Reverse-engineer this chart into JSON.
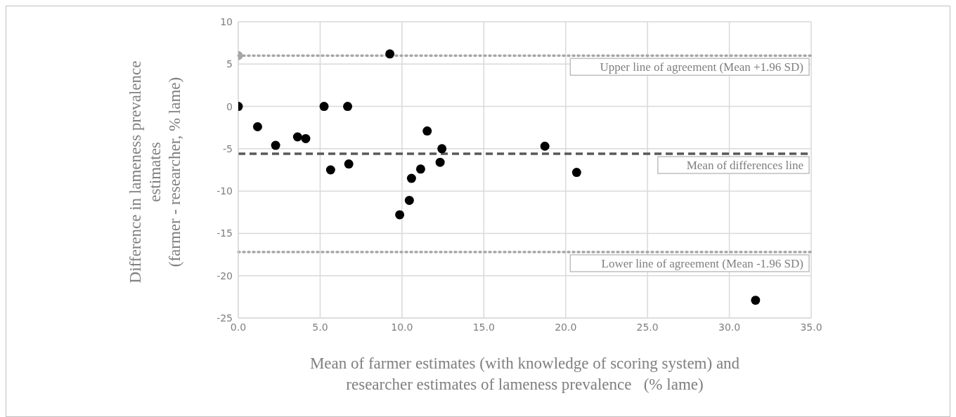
{
  "chart_data": {
    "type": "scatter",
    "xlabel": "Mean of farmer estimates (with knowledge of scoring system) and\nresearcher estimates of lameness prevalence   (% lame)",
    "ylabel": "Difference in lameness prevalence\nestimates\n(farmer - researcher, % lame)",
    "xlim": [
      0,
      35
    ],
    "xticks": [
      {
        "value": 0,
        "label": "0.0"
      },
      {
        "value": 5,
        "label": "5.0"
      },
      {
        "value": 10,
        "label": "10.0"
      },
      {
        "value": 15,
        "label": "15.0"
      },
      {
        "value": 20,
        "label": "20.0"
      },
      {
        "value": 25,
        "label": "25.0"
      },
      {
        "value": 30,
        "label": "30.0"
      },
      {
        "value": 35,
        "label": "35.0"
      }
    ],
    "ylim": [
      -25,
      10
    ],
    "yticks": [
      -25,
      -20,
      -15,
      -10,
      -5,
      0,
      5,
      10
    ],
    "grid": true,
    "marker": "circle",
    "series": [
      {
        "color": "#000000",
        "x": [
          0,
          1.18,
          2.28,
          3.62,
          4.12,
          5.24,
          5.64,
          6.68,
          6.75,
          9.26,
          9.86,
          10.45,
          10.58,
          11.14,
          11.54,
          12.44,
          12.33,
          18.73,
          20.67,
          31.6
        ],
        "values": [
          0,
          -2.4,
          -4.6,
          -3.6,
          -3.8,
          0,
          -7.5,
          0,
          -6.8,
          6.2,
          -12.8,
          -11.1,
          -8.5,
          -7.4,
          -2.9,
          -5.0,
          -6.6,
          -4.7,
          -7.8,
          -22.9
        ]
      },
      {
        "color": "#a6a6a6",
        "x": [
          0
        ],
        "values": [
          6.0
        ]
      }
    ],
    "ref_lines": [
      {
        "axis": "y",
        "value": 6.0,
        "label": "Upper line of agreement (Mean +1.96 SD)",
        "color": "#a6a6a6",
        "line_style": "dotted"
      },
      {
        "axis": "y",
        "value": -5.6,
        "label": "Mean of differences line",
        "color": "#595959",
        "line_style": "dashed"
      },
      {
        "axis": "y",
        "value": -17.2,
        "label": "Lower line of agreement (Mean -1.96 SD)",
        "color": "#a6a6a6",
        "line_style": "dotted"
      }
    ]
  }
}
